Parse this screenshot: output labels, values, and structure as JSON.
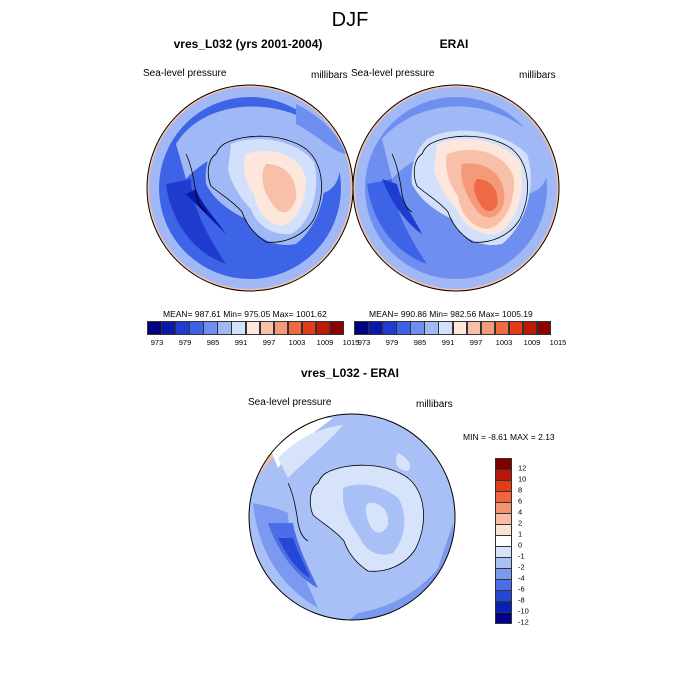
{
  "figure_title": "DJF",
  "panels": [
    {
      "title": "vres_L032 (yrs 2001-2004)",
      "left_label": "Sea-level pressure",
      "right_label": "millibars",
      "stats_text": "MEAN= 987.61   Min= 975.05   Max= 1001.62"
    },
    {
      "title": "ERAI",
      "left_label": "Sea-level pressure",
      "right_label": "millibars",
      "stats_text": "MEAN= 990.86   Min= 982.56   Max= 1005.19"
    },
    {
      "title": "vres_L032 - ERAI",
      "left_label": "Sea-level pressure",
      "right_label": "millibars",
      "stats_text": "MIN =  -8.61 MAX =   2.13"
    }
  ],
  "colors": {
    "abs_scale": [
      "#00007f",
      "#0a18a8",
      "#1f3ccf",
      "#3d64e6",
      "#6f8ff0",
      "#a0b8f5",
      "#d2e0fb",
      "#fde6dc",
      "#f8c0a8",
      "#f59a78",
      "#ef6a44",
      "#e23c1a",
      "#bf1a08",
      "#8b0000"
    ],
    "diff_scale": [
      "#7f0000",
      "#b8160a",
      "#e33a18",
      "#f0653e",
      "#f49272",
      "#f7bda4",
      "#fbe2d6",
      "#ffffff",
      "#d6e3fb",
      "#a9c0f6",
      "#7b99ef",
      "#4d6de6",
      "#2447d6",
      "#0a20b0",
      "#00008b"
    ],
    "land_outline": "#000000",
    "map_border": "#000000"
  },
  "chart_data": [
    {
      "type": "heatmap",
      "title": "vres_L032 (yrs 2001-2004)",
      "subtitle": "",
      "variable": "Sea-level pressure",
      "units": "millibars",
      "projection": "south polar stereographic",
      "mean": 987.61,
      "min": 975.05,
      "max": 1001.62,
      "colorbar_ticks": [
        "973",
        "979",
        "985",
        "991",
        "997",
        "1003",
        "1009",
        "1015"
      ],
      "colorbar_levels": [
        970,
        973,
        976,
        979,
        982,
        985,
        988,
        991,
        994,
        997,
        1000,
        1003,
        1006,
        1009,
        1012,
        1015
      ],
      "colorbar_orientation": "horizontal"
    },
    {
      "type": "heatmap",
      "title": "ERAI",
      "variable": "Sea-level pressure",
      "units": "millibars",
      "projection": "south polar stereographic",
      "mean": 990.86,
      "min": 982.56,
      "max": 1005.19,
      "colorbar_ticks": [
        "973",
        "979",
        "985",
        "991",
        "997",
        "1003",
        "1009",
        "1015"
      ],
      "colorbar_orientation": "horizontal"
    },
    {
      "type": "heatmap",
      "title": "vres_L032 - ERAI",
      "variable": "Sea-level pressure",
      "units": "millibars",
      "projection": "south polar stereographic",
      "min": -8.61,
      "max": 2.13,
      "colorbar_ticks": [
        "12",
        "10",
        "8",
        "6",
        "4",
        "2",
        "1",
        "0",
        "-1",
        "-2",
        "-4",
        "-6",
        "-8",
        "-10",
        "-12"
      ],
      "colorbar_orientation": "vertical"
    }
  ]
}
